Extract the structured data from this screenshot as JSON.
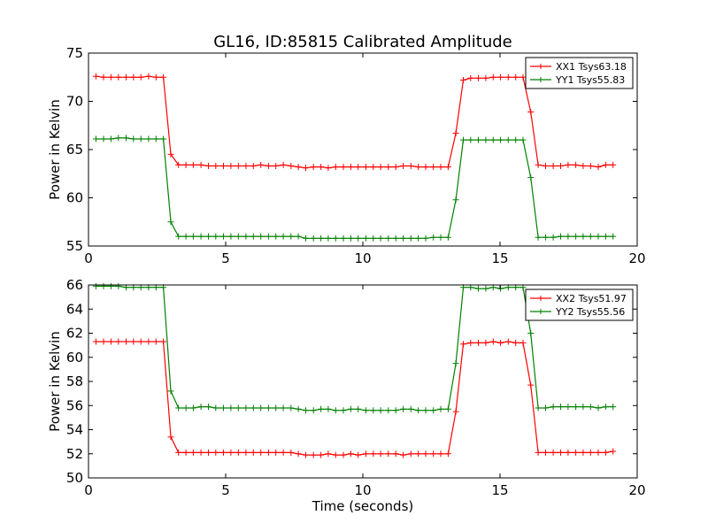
{
  "figure": {
    "title": "GL16, ID:85815 Calibrated Amplitude"
  },
  "chart_data": [
    {
      "type": "line",
      "title": "GL16, ID:85815 Calibrated Amplitude",
      "xlabel": "",
      "ylabel": "Power in Kelvin",
      "xlim": [
        0,
        20
      ],
      "ylim": [
        55,
        75
      ],
      "xticks": [
        0,
        5,
        10,
        15,
        20
      ],
      "yticks": [
        55,
        60,
        65,
        70,
        75
      ],
      "grid": false,
      "legend_position": "top-right",
      "x": [
        0.27,
        0.55,
        0.82,
        1.09,
        1.37,
        1.64,
        1.91,
        2.19,
        2.46,
        2.73,
        3.0,
        3.28,
        3.55,
        3.82,
        4.1,
        4.37,
        4.64,
        4.92,
        5.19,
        5.46,
        5.74,
        6.01,
        6.28,
        6.56,
        6.83,
        7.1,
        7.38,
        7.65,
        7.92,
        8.2,
        8.47,
        8.74,
        9.01,
        9.29,
        9.56,
        9.83,
        10.11,
        10.38,
        10.65,
        10.93,
        11.2,
        11.47,
        11.75,
        12.02,
        12.29,
        12.57,
        12.84,
        13.11,
        13.39,
        13.66,
        13.93,
        14.21,
        14.48,
        14.75,
        15.02,
        15.3,
        15.57,
        15.84,
        16.12,
        16.39,
        16.66,
        16.94,
        17.21,
        17.48,
        17.76,
        18.03,
        18.3,
        18.58,
        18.85,
        19.12
      ],
      "series": [
        {
          "name": "XX1 Tsys63.18",
          "color": "#ff0000",
          "values": [
            72.6,
            72.5,
            72.5,
            72.5,
            72.5,
            72.5,
            72.5,
            72.6,
            72.5,
            72.5,
            64.5,
            63.4,
            63.4,
            63.4,
            63.4,
            63.3,
            63.3,
            63.3,
            63.3,
            63.3,
            63.3,
            63.3,
            63.4,
            63.3,
            63.3,
            63.4,
            63.3,
            63.2,
            63.1,
            63.2,
            63.2,
            63.1,
            63.2,
            63.2,
            63.2,
            63.2,
            63.2,
            63.2,
            63.2,
            63.2,
            63.2,
            63.3,
            63.3,
            63.2,
            63.2,
            63.2,
            63.2,
            63.2,
            66.7,
            72.2,
            72.4,
            72.4,
            72.4,
            72.5,
            72.5,
            72.5,
            72.5,
            72.5,
            68.9,
            63.4,
            63.3,
            63.3,
            63.3,
            63.4,
            63.4,
            63.3,
            63.3,
            63.2,
            63.4,
            63.4
          ]
        },
        {
          "name": "YY1 Tsys55.83",
          "color": "#008000",
          "values": [
            66.1,
            66.1,
            66.1,
            66.2,
            66.2,
            66.1,
            66.1,
            66.1,
            66.1,
            66.1,
            57.5,
            56.0,
            56.0,
            56.0,
            56.0,
            56.0,
            56.0,
            56.0,
            56.0,
            56.0,
            56.0,
            56.0,
            56.0,
            56.0,
            56.0,
            56.0,
            56.0,
            56.0,
            55.8,
            55.8,
            55.8,
            55.8,
            55.8,
            55.8,
            55.8,
            55.8,
            55.8,
            55.8,
            55.8,
            55.8,
            55.8,
            55.8,
            55.8,
            55.8,
            55.8,
            55.9,
            55.9,
            55.9,
            59.8,
            66.0,
            66.0,
            66.0,
            66.0,
            66.0,
            66.0,
            66.0,
            66.0,
            66.0,
            62.1,
            55.9,
            55.9,
            55.9,
            56.0,
            56.0,
            56.0,
            56.0,
            56.0,
            56.0,
            56.0,
            56.0
          ]
        }
      ]
    },
    {
      "type": "line",
      "title": "",
      "xlabel": "Time (seconds)",
      "ylabel": "Power in Kelvin",
      "xlim": [
        0,
        20
      ],
      "ylim": [
        50,
        66
      ],
      "xticks": [
        0,
        5,
        10,
        15,
        20
      ],
      "yticks": [
        50,
        52,
        54,
        56,
        58,
        60,
        62,
        64,
        66
      ],
      "grid": false,
      "legend_position": "top-right",
      "x": [
        0.27,
        0.55,
        0.82,
        1.09,
        1.37,
        1.64,
        1.91,
        2.19,
        2.46,
        2.73,
        3.0,
        3.28,
        3.55,
        3.82,
        4.1,
        4.37,
        4.64,
        4.92,
        5.19,
        5.46,
        5.74,
        6.01,
        6.28,
        6.56,
        6.83,
        7.1,
        7.38,
        7.65,
        7.92,
        8.2,
        8.47,
        8.74,
        9.01,
        9.29,
        9.56,
        9.83,
        10.11,
        10.38,
        10.65,
        10.93,
        11.2,
        11.47,
        11.75,
        12.02,
        12.29,
        12.57,
        12.84,
        13.11,
        13.39,
        13.66,
        13.93,
        14.21,
        14.48,
        14.75,
        15.02,
        15.3,
        15.57,
        15.84,
        16.12,
        16.39,
        16.66,
        16.94,
        17.21,
        17.48,
        17.76,
        18.03,
        18.3,
        18.58,
        18.85,
        19.12
      ],
      "series": [
        {
          "name": "XX2 Tsys51.97",
          "color": "#ff0000",
          "values": [
            61.3,
            61.3,
            61.3,
            61.3,
            61.3,
            61.3,
            61.3,
            61.3,
            61.3,
            61.3,
            53.4,
            52.1,
            52.1,
            52.1,
            52.1,
            52.1,
            52.1,
            52.1,
            52.1,
            52.1,
            52.1,
            52.1,
            52.1,
            52.1,
            52.1,
            52.1,
            52.1,
            52.0,
            51.9,
            51.9,
            51.9,
            52.0,
            51.9,
            51.9,
            52.0,
            51.9,
            52.0,
            52.0,
            52.0,
            52.0,
            52.0,
            51.9,
            52.0,
            52.0,
            52.0,
            52.0,
            52.0,
            52.0,
            55.5,
            61.1,
            61.2,
            61.2,
            61.2,
            61.3,
            61.2,
            61.3,
            61.2,
            61.2,
            57.7,
            52.1,
            52.1,
            52.1,
            52.1,
            52.1,
            52.1,
            52.1,
            52.1,
            52.1,
            52.1,
            52.2
          ]
        },
        {
          "name": "YY2 Tsys55.56",
          "color": "#008000",
          "values": [
            65.9,
            65.9,
            65.9,
            65.9,
            65.8,
            65.8,
            65.8,
            65.8,
            65.8,
            65.8,
            57.2,
            55.8,
            55.8,
            55.8,
            55.9,
            55.9,
            55.8,
            55.8,
            55.8,
            55.8,
            55.8,
            55.8,
            55.8,
            55.8,
            55.8,
            55.8,
            55.8,
            55.7,
            55.6,
            55.6,
            55.7,
            55.7,
            55.6,
            55.6,
            55.7,
            55.7,
            55.6,
            55.6,
            55.6,
            55.6,
            55.6,
            55.7,
            55.7,
            55.6,
            55.6,
            55.6,
            55.7,
            55.7,
            59.5,
            65.8,
            65.8,
            65.7,
            65.7,
            65.8,
            65.7,
            65.8,
            65.8,
            65.8,
            62.0,
            55.8,
            55.8,
            55.9,
            55.9,
            55.9,
            55.9,
            55.9,
            55.9,
            55.8,
            55.9,
            55.9
          ]
        }
      ]
    }
  ]
}
